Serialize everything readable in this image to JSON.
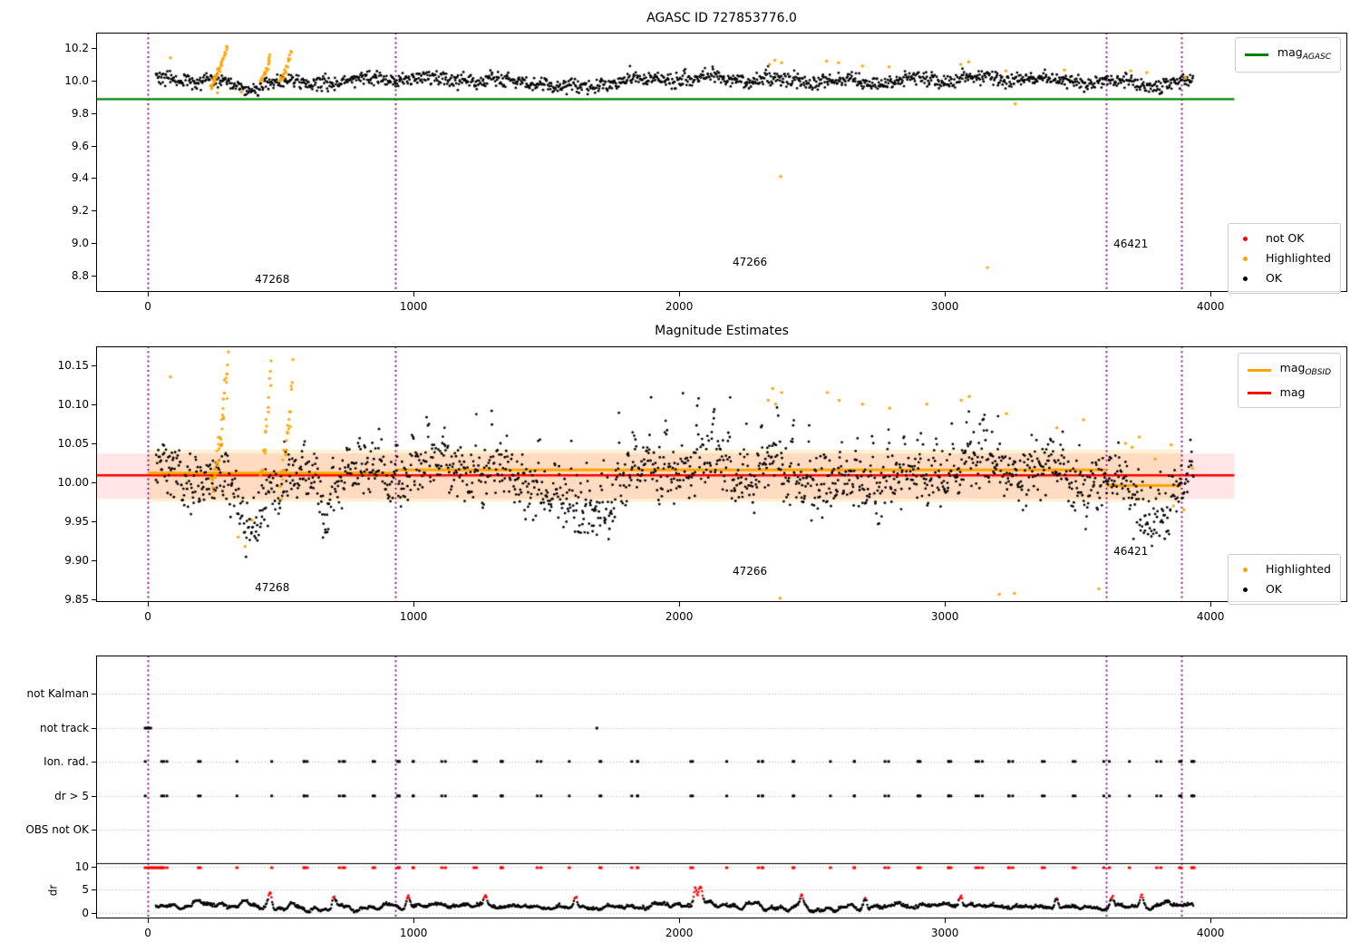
{
  "figure": {
    "background": "#ffffff"
  },
  "colors": {
    "ok": "#000000",
    "highlighted": "#ffa500",
    "not_ok": "#ff0000",
    "mag_agasc_line": "#008000",
    "mag_line": "#ff0000",
    "mag_obsid_line": "#ffa500",
    "obsid_boundary": "#800080",
    "band_red": "rgba(255,0,0,0.10)",
    "band_orange": "rgba(255,165,0,0.16)",
    "grid": "#aaaaaa",
    "axis": "#000000"
  },
  "chart_data": [
    {
      "type": "scatter",
      "title": "AGASC ID 727853776.0",
      "xlim": [
        -195,
        4515
      ],
      "ylim": [
        8.7,
        10.295
      ],
      "xticks": [
        {
          "v": 0,
          "label": "0"
        },
        {
          "v": 1000,
          "label": "1000"
        },
        {
          "v": 2000,
          "label": "2000"
        },
        {
          "v": 3000,
          "label": "3000"
        },
        {
          "v": 4000,
          "label": "4000"
        }
      ],
      "yticks": [
        {
          "v": 8.8,
          "label": "8.8"
        },
        {
          "v": 9.0,
          "label": "9.0"
        },
        {
          "v": 9.2,
          "label": "9.2"
        },
        {
          "v": 9.4,
          "label": "9.4"
        },
        {
          "v": 9.6,
          "label": "9.6"
        },
        {
          "v": 9.8,
          "label": "9.8"
        },
        {
          "v": 10.0,
          "label": "10.0"
        },
        {
          "v": 10.2,
          "label": "10.2"
        }
      ],
      "obsid_boundaries": [
        0,
        932,
        3608,
        3891
      ],
      "mag_agasc_line": {
        "y": 9.886,
        "x0": -195,
        "x1": 4090
      },
      "legend_line": {
        "label": "mag",
        "sub": "AGASC"
      },
      "legend_points": {
        "items": [
          {
            "label": "not OK",
            "color": "#ff0000"
          },
          {
            "label": "Highlighted",
            "color": "#ffa500"
          },
          {
            "label": "OK",
            "color": "#000000"
          }
        ]
      },
      "annotations": [
        {
          "text": "47268",
          "x": 468,
          "y": 8.78
        },
        {
          "text": "47266",
          "x": 2266,
          "y": 8.886
        },
        {
          "text": "46421",
          "x": 3700,
          "y": 8.997
        }
      ],
      "series_black": {
        "x0": 30,
        "x1": 3935,
        "n": 1500,
        "base": 10.0,
        "noise": 0.021,
        "dips": [
          [
            290,
            440,
            -0.06
          ],
          [
            560,
            660,
            -0.035
          ],
          [
            1450,
            1780,
            -0.04
          ],
          [
            3700,
            3935,
            -0.022
          ]
        ],
        "spike_amp": 0.045,
        "spike_every": 40
      },
      "series_orange": {
        "runs": [
          {
            "x0": 235,
            "x1": 300,
            "y0": 9.975,
            "y1": 10.225,
            "n": 36
          },
          {
            "x0": 424,
            "x1": 462,
            "y0": 10.0,
            "y1": 10.155,
            "n": 20
          },
          {
            "x0": 498,
            "x1": 540,
            "y0": 10.0,
            "y1": 10.185,
            "n": 22
          }
        ],
        "points": [
          [
            85,
            10.14
          ],
          [
            240,
            9.95
          ],
          [
            262,
            9.925
          ],
          [
            352,
            9.93
          ],
          [
            2340,
            10.1
          ],
          [
            2360,
            10.125
          ],
          [
            2386,
            10.11
          ],
          [
            2555,
            10.12
          ],
          [
            2600,
            10.11
          ],
          [
            2690,
            10.09
          ],
          [
            2790,
            10.085
          ],
          [
            3060,
            10.1
          ],
          [
            3090,
            10.115
          ],
          [
            3230,
            10.06
          ],
          [
            3450,
            10.065
          ],
          [
            3700,
            10.06
          ],
          [
            3760,
            10.05
          ],
          [
            3905,
            10.02
          ],
          [
            2382,
            9.41
          ],
          [
            3160,
            8.85
          ],
          [
            3265,
            9.857
          ]
        ]
      }
    },
    {
      "type": "scatter",
      "title": "Magnitude Estimates",
      "xlim": [
        -195,
        4515
      ],
      "ylim": [
        9.847,
        10.174
      ],
      "xticks": [
        {
          "v": 0,
          "label": "0"
        },
        {
          "v": 1000,
          "label": "1000"
        },
        {
          "v": 2000,
          "label": "2000"
        },
        {
          "v": 3000,
          "label": "3000"
        },
        {
          "v": 4000,
          "label": "4000"
        }
      ],
      "yticks": [
        {
          "v": 9.85,
          "label": "9.85"
        },
        {
          "v": 9.9,
          "label": "9.90"
        },
        {
          "v": 9.95,
          "label": "9.95"
        },
        {
          "v": 10.0,
          "label": "10.00"
        },
        {
          "v": 10.05,
          "label": "10.05"
        },
        {
          "v": 10.1,
          "label": "10.10"
        },
        {
          "v": 10.15,
          "label": "10.15"
        }
      ],
      "obsid_boundaries": [
        0,
        932,
        3608,
        3891
      ],
      "mag_line": {
        "y": 10.009,
        "x0": -195,
        "x1": 4090
      },
      "band_red": {
        "y0": 9.979,
        "y1": 10.037,
        "x0": -195,
        "x1": 4090
      },
      "band_orange": {
        "y0": 9.975,
        "y1": 10.042,
        "x0": 0,
        "x1": 3891
      },
      "mag_obsid_segments": [
        {
          "x0": 0,
          "x1": 932,
          "y": 10.012
        },
        {
          "x0": 932,
          "x1": 3608,
          "y": 10.016
        },
        {
          "x0": 3608,
          "x1": 3891,
          "y": 9.996
        }
      ],
      "legend_lines": {
        "items": [
          {
            "label": "mag",
            "sub": "OBSID",
            "color": "#ffa500"
          },
          {
            "label": "mag",
            "sub": "",
            "color": "#ff0000"
          }
        ]
      },
      "legend_points": {
        "items": [
          {
            "label": "Highlighted",
            "color": "#ffa500"
          },
          {
            "label": "OK",
            "color": "#000000"
          }
        ]
      },
      "annotations": [
        {
          "text": "47268",
          "x": 468,
          "y": 9.865
        },
        {
          "text": "47266",
          "x": 2266,
          "y": 9.887
        },
        {
          "text": "46421",
          "x": 3700,
          "y": 9.912
        }
      ],
      "series_black": {
        "x0": 30,
        "x1": 3935,
        "n": 1700,
        "base": 10.006,
        "noise": 0.018,
        "dips": [
          [
            300,
            445,
            -0.06
          ],
          [
            620,
            700,
            -0.03
          ],
          [
            1480,
            1800,
            -0.048
          ],
          [
            3660,
            3935,
            -0.042
          ]
        ],
        "spike_amp": 0.065,
        "spike_every": 26
      },
      "series_orange": {
        "runs": [
          {
            "x0": 238,
            "x1": 302,
            "y0": 9.99,
            "y1": 10.162,
            "n": 40
          },
          {
            "x0": 424,
            "x1": 462,
            "y0": 10.0,
            "y1": 10.148,
            "n": 22
          },
          {
            "x0": 500,
            "x1": 545,
            "y0": 10.0,
            "y1": 10.145,
            "n": 24
          }
        ],
        "points": [
          [
            85,
            10.135
          ],
          [
            340,
            9.93
          ],
          [
            366,
            9.918
          ],
          [
            392,
            9.952
          ],
          [
            2335,
            10.105
          ],
          [
            2352,
            10.12
          ],
          [
            2363,
            10.1
          ],
          [
            2386,
            10.115
          ],
          [
            2558,
            10.115
          ],
          [
            2602,
            10.105
          ],
          [
            2690,
            10.1
          ],
          [
            2792,
            10.095
          ],
          [
            2932,
            10.1
          ],
          [
            3062,
            10.105
          ],
          [
            3092,
            10.11
          ],
          [
            3232,
            10.088
          ],
          [
            3422,
            10.07
          ],
          [
            3522,
            10.08
          ],
          [
            3680,
            10.05
          ],
          [
            3705,
            10.045
          ],
          [
            3732,
            10.058
          ],
          [
            3792,
            10.03
          ],
          [
            3852,
            10.048
          ],
          [
            3932,
            10.018
          ],
          [
            2380,
            9.852
          ],
          [
            3205,
            9.857
          ],
          [
            3262,
            9.858
          ],
          [
            3580,
            9.864
          ],
          [
            3860,
            9.97
          ],
          [
            3900,
            9.965
          ]
        ]
      }
    },
    {
      "type": "scatter",
      "title": "",
      "xlim": [
        -195,
        4515
      ],
      "xticks": [
        {
          "v": 0,
          "label": "0"
        },
        {
          "v": 1000,
          "label": "1000"
        },
        {
          "v": 2000,
          "label": "2000"
        },
        {
          "v": 3000,
          "label": "3000"
        },
        {
          "v": 4000,
          "label": "4000"
        }
      ],
      "rows": [
        {
          "label": "not Kalman",
          "f": 0.145
        },
        {
          "label": "not track",
          "f": 0.276
        },
        {
          "label": "Ion. rad.",
          "f": 0.403
        },
        {
          "label": "dr > 5",
          "f": 0.534
        },
        {
          "label": "OBS not OK",
          "f": 0.662
        }
      ],
      "dr_ticks": [
        {
          "v": 10,
          "label": "10",
          "f": 0.802
        },
        {
          "v": 5,
          "label": "5",
          "f": 0.889
        },
        {
          "v": 0,
          "label": "0",
          "f": 0.979
        }
      ],
      "ylabel": "dr",
      "divider_f": 0.791,
      "clip_row_f": 0.807,
      "obsid_boundaries": [
        0,
        932,
        3608,
        3891
      ],
      "flag_rows": [
        "Ion. rad.",
        "dr > 5"
      ],
      "flag_x": [
        0,
        60,
        200,
        330,
        470,
        600,
        730,
        860,
        935,
        1000,
        1110,
        1230,
        1341,
        1477,
        1578,
        1704,
        1833,
        2053,
        2189,
        2308,
        2437,
        2559,
        2671,
        2776,
        2895,
        3010,
        3130,
        3250,
        3370,
        3490,
        3608,
        3700,
        3800,
        3891,
        3940
      ],
      "not_track_x": [
        0,
        1690
      ],
      "red_cluster": {
        "x0": 0,
        "x1": 55,
        "step": 6
      },
      "dr_curve": {
        "x0": 30,
        "x1": 3935,
        "n": 1500,
        "red_threshold": 3.05,
        "spikes": [
          [
            460,
            5.2
          ],
          [
            700,
            4.6
          ],
          [
            980,
            4.2
          ],
          [
            1270,
            3.9
          ],
          [
            1610,
            4.3
          ],
          [
            2060,
            7.2
          ],
          [
            2080,
            5.6
          ],
          [
            2460,
            4.1
          ],
          [
            2700,
            4.4
          ],
          [
            3060,
            4.3
          ],
          [
            3420,
            4.5
          ],
          [
            3630,
            3.8
          ],
          [
            3740,
            4.0
          ]
        ]
      }
    }
  ]
}
